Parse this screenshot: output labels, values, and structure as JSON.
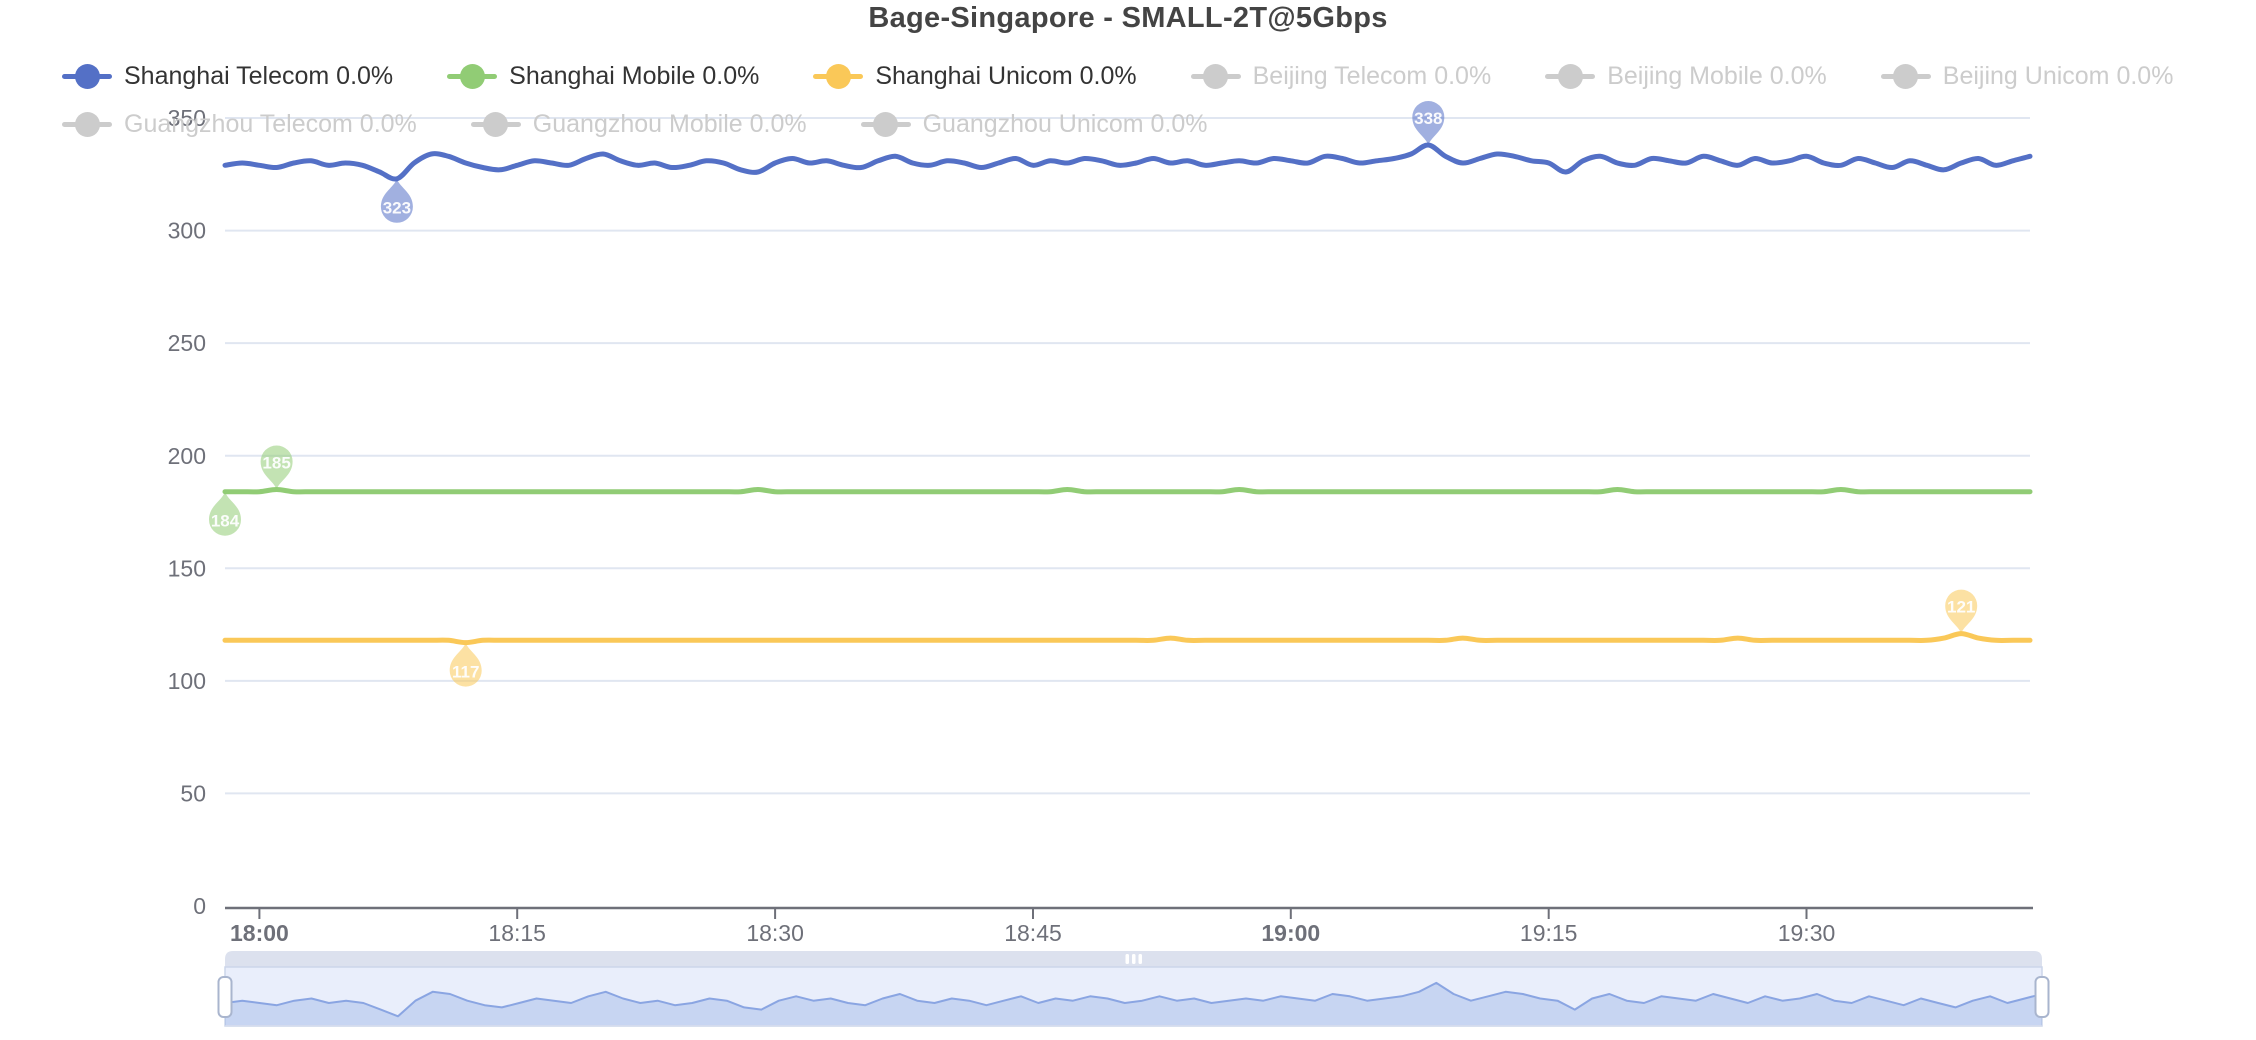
{
  "title": "Bage-Singapore - SMALL-2T@5Gbps",
  "legend": {
    "rows": [
      [
        {
          "label": "Shanghai Telecom 0.0%",
          "color": "#5470c6",
          "active": true
        },
        {
          "label": "Shanghai Mobile 0.0%",
          "color": "#91cc75",
          "active": true
        },
        {
          "label": "Shanghai Unicom 0.0%",
          "color": "#fac858",
          "active": true
        },
        {
          "label": "Beijing Telecom 0.0%",
          "color": "#cccccc",
          "active": false
        },
        {
          "label": "Beijing Mobile 0.0%",
          "color": "#cccccc",
          "active": false
        },
        {
          "label": "Beijing Unicom 0.0%",
          "color": "#cccccc",
          "active": false
        }
      ],
      [
        {
          "label": "Guangzhou Telecom 0.0%",
          "color": "#cccccc",
          "active": false
        },
        {
          "label": "Guangzhou Mobile 0.0%",
          "color": "#cccccc",
          "active": false
        },
        {
          "label": "Guangzhou Unicom 0.0%",
          "color": "#cccccc",
          "active": false
        }
      ]
    ]
  },
  "chart_data": {
    "type": "line",
    "title": "Bage-Singapore - SMALL-2T@5Gbps",
    "ylabel": "",
    "xlabel": "",
    "ylim": [
      0,
      350
    ],
    "y_ticks": [
      0,
      50,
      100,
      150,
      200,
      250,
      300,
      350
    ],
    "x_start": "17:58",
    "x_step_minutes": 1,
    "grid": true,
    "legend_position": "top",
    "x_ticks": [
      {
        "label": "18:00",
        "index": 2,
        "bold": true
      },
      {
        "label": "18:15",
        "index": 17,
        "bold": false
      },
      {
        "label": "18:30",
        "index": 32,
        "bold": false
      },
      {
        "label": "18:45",
        "index": 47,
        "bold": false
      },
      {
        "label": "19:00",
        "index": 62,
        "bold": true
      },
      {
        "label": "19:15",
        "index": 77,
        "bold": false
      },
      {
        "label": "19:30",
        "index": 92,
        "bold": false
      }
    ],
    "series": [
      {
        "name": "Shanghai Telecom",
        "color": "#5470c6",
        "values": [
          329,
          330,
          329,
          328,
          330,
          331,
          329,
          330,
          329,
          326,
          323,
          330,
          334,
          333,
          330,
          328,
          327,
          329,
          331,
          330,
          329,
          332,
          334,
          331,
          329,
          330,
          328,
          329,
          331,
          330,
          327,
          326,
          330,
          332,
          330,
          331,
          329,
          328,
          331,
          333,
          330,
          329,
          331,
          330,
          328,
          330,
          332,
          329,
          331,
          330,
          332,
          331,
          329,
          330,
          332,
          330,
          331,
          329,
          330,
          331,
          330,
          332,
          331,
          330,
          333,
          332,
          330,
          331,
          332,
          334,
          338,
          333,
          330,
          332,
          334,
          333,
          331,
          330,
          326,
          331,
          333,
          330,
          329,
          332,
          331,
          330,
          333,
          331,
          329,
          332,
          330,
          331,
          333,
          330,
          329,
          332,
          330,
          328,
          331,
          329,
          327,
          330,
          332,
          329,
          331,
          333
        ],
        "markpoints": [
          {
            "kind": "max",
            "label": "338",
            "index": 70
          },
          {
            "kind": "min",
            "label": "323",
            "index": 10
          }
        ]
      },
      {
        "name": "Shanghai Mobile",
        "color": "#91cc75",
        "values": [
          184,
          184,
          184,
          185,
          184,
          184,
          184,
          184,
          184,
          184,
          184,
          184,
          184,
          184,
          184,
          184,
          184,
          184,
          184,
          184,
          184,
          184,
          184,
          184,
          184,
          184,
          184,
          184,
          184,
          184,
          184,
          185,
          184,
          184,
          184,
          184,
          184,
          184,
          184,
          184,
          184,
          184,
          184,
          184,
          184,
          184,
          184,
          184,
          184,
          185,
          184,
          184,
          184,
          184,
          184,
          184,
          184,
          184,
          184,
          185,
          184,
          184,
          184,
          184,
          184,
          184,
          184,
          184,
          184,
          184,
          184,
          184,
          184,
          184,
          184,
          184,
          184,
          184,
          184,
          184,
          184,
          185,
          184,
          184,
          184,
          184,
          184,
          184,
          184,
          184,
          184,
          184,
          184,
          184,
          185,
          184,
          184,
          184,
          184,
          184,
          184,
          184,
          184,
          184,
          184,
          184
        ],
        "markpoints": [
          {
            "kind": "max",
            "label": "185",
            "index": 3
          },
          {
            "kind": "min",
            "label": "184",
            "index": 0
          }
        ]
      },
      {
        "name": "Shanghai Unicom",
        "color": "#fac858",
        "values": [
          118,
          118,
          118,
          118,
          118,
          118,
          118,
          118,
          118,
          118,
          118,
          118,
          118,
          118,
          117,
          118,
          118,
          118,
          118,
          118,
          118,
          118,
          118,
          118,
          118,
          118,
          118,
          118,
          118,
          118,
          118,
          118,
          118,
          118,
          118,
          118,
          118,
          118,
          118,
          118,
          118,
          118,
          118,
          118,
          118,
          118,
          118,
          118,
          118,
          118,
          118,
          118,
          118,
          118,
          118,
          119,
          118,
          118,
          118,
          118,
          118,
          118,
          118,
          118,
          118,
          118,
          118,
          118,
          118,
          118,
          118,
          118,
          119,
          118,
          118,
          118,
          118,
          118,
          118,
          118,
          118,
          118,
          118,
          118,
          118,
          118,
          118,
          118,
          119,
          118,
          118,
          118,
          118,
          118,
          118,
          118,
          118,
          118,
          118,
          118,
          119,
          121,
          119,
          118,
          118,
          118
        ],
        "markpoints": [
          {
            "kind": "max",
            "label": "121",
            "index": 101
          },
          {
            "kind": "min",
            "label": "117",
            "index": 14
          }
        ]
      }
    ]
  },
  "navigator": {
    "mirrors_series": "Shanghai Telecom",
    "grip": "|||"
  },
  "colors": {
    "title": "#444444",
    "legend_active": "#333333",
    "legend_inactive": "#cccccc",
    "axis_label": "#6E7079",
    "axis_line": "#6E7079",
    "grid_line": "#E0E6F1",
    "nav_strip": "#dce1ee",
    "nav_body": "#e9eefb",
    "nav_border": "#ccd5ea",
    "nav_line": "#8aa5e2",
    "nav_fill": "rgba(122,154,222,0.30)",
    "handle_fill": "#ffffff",
    "handle_border": "#a9b5ce"
  }
}
